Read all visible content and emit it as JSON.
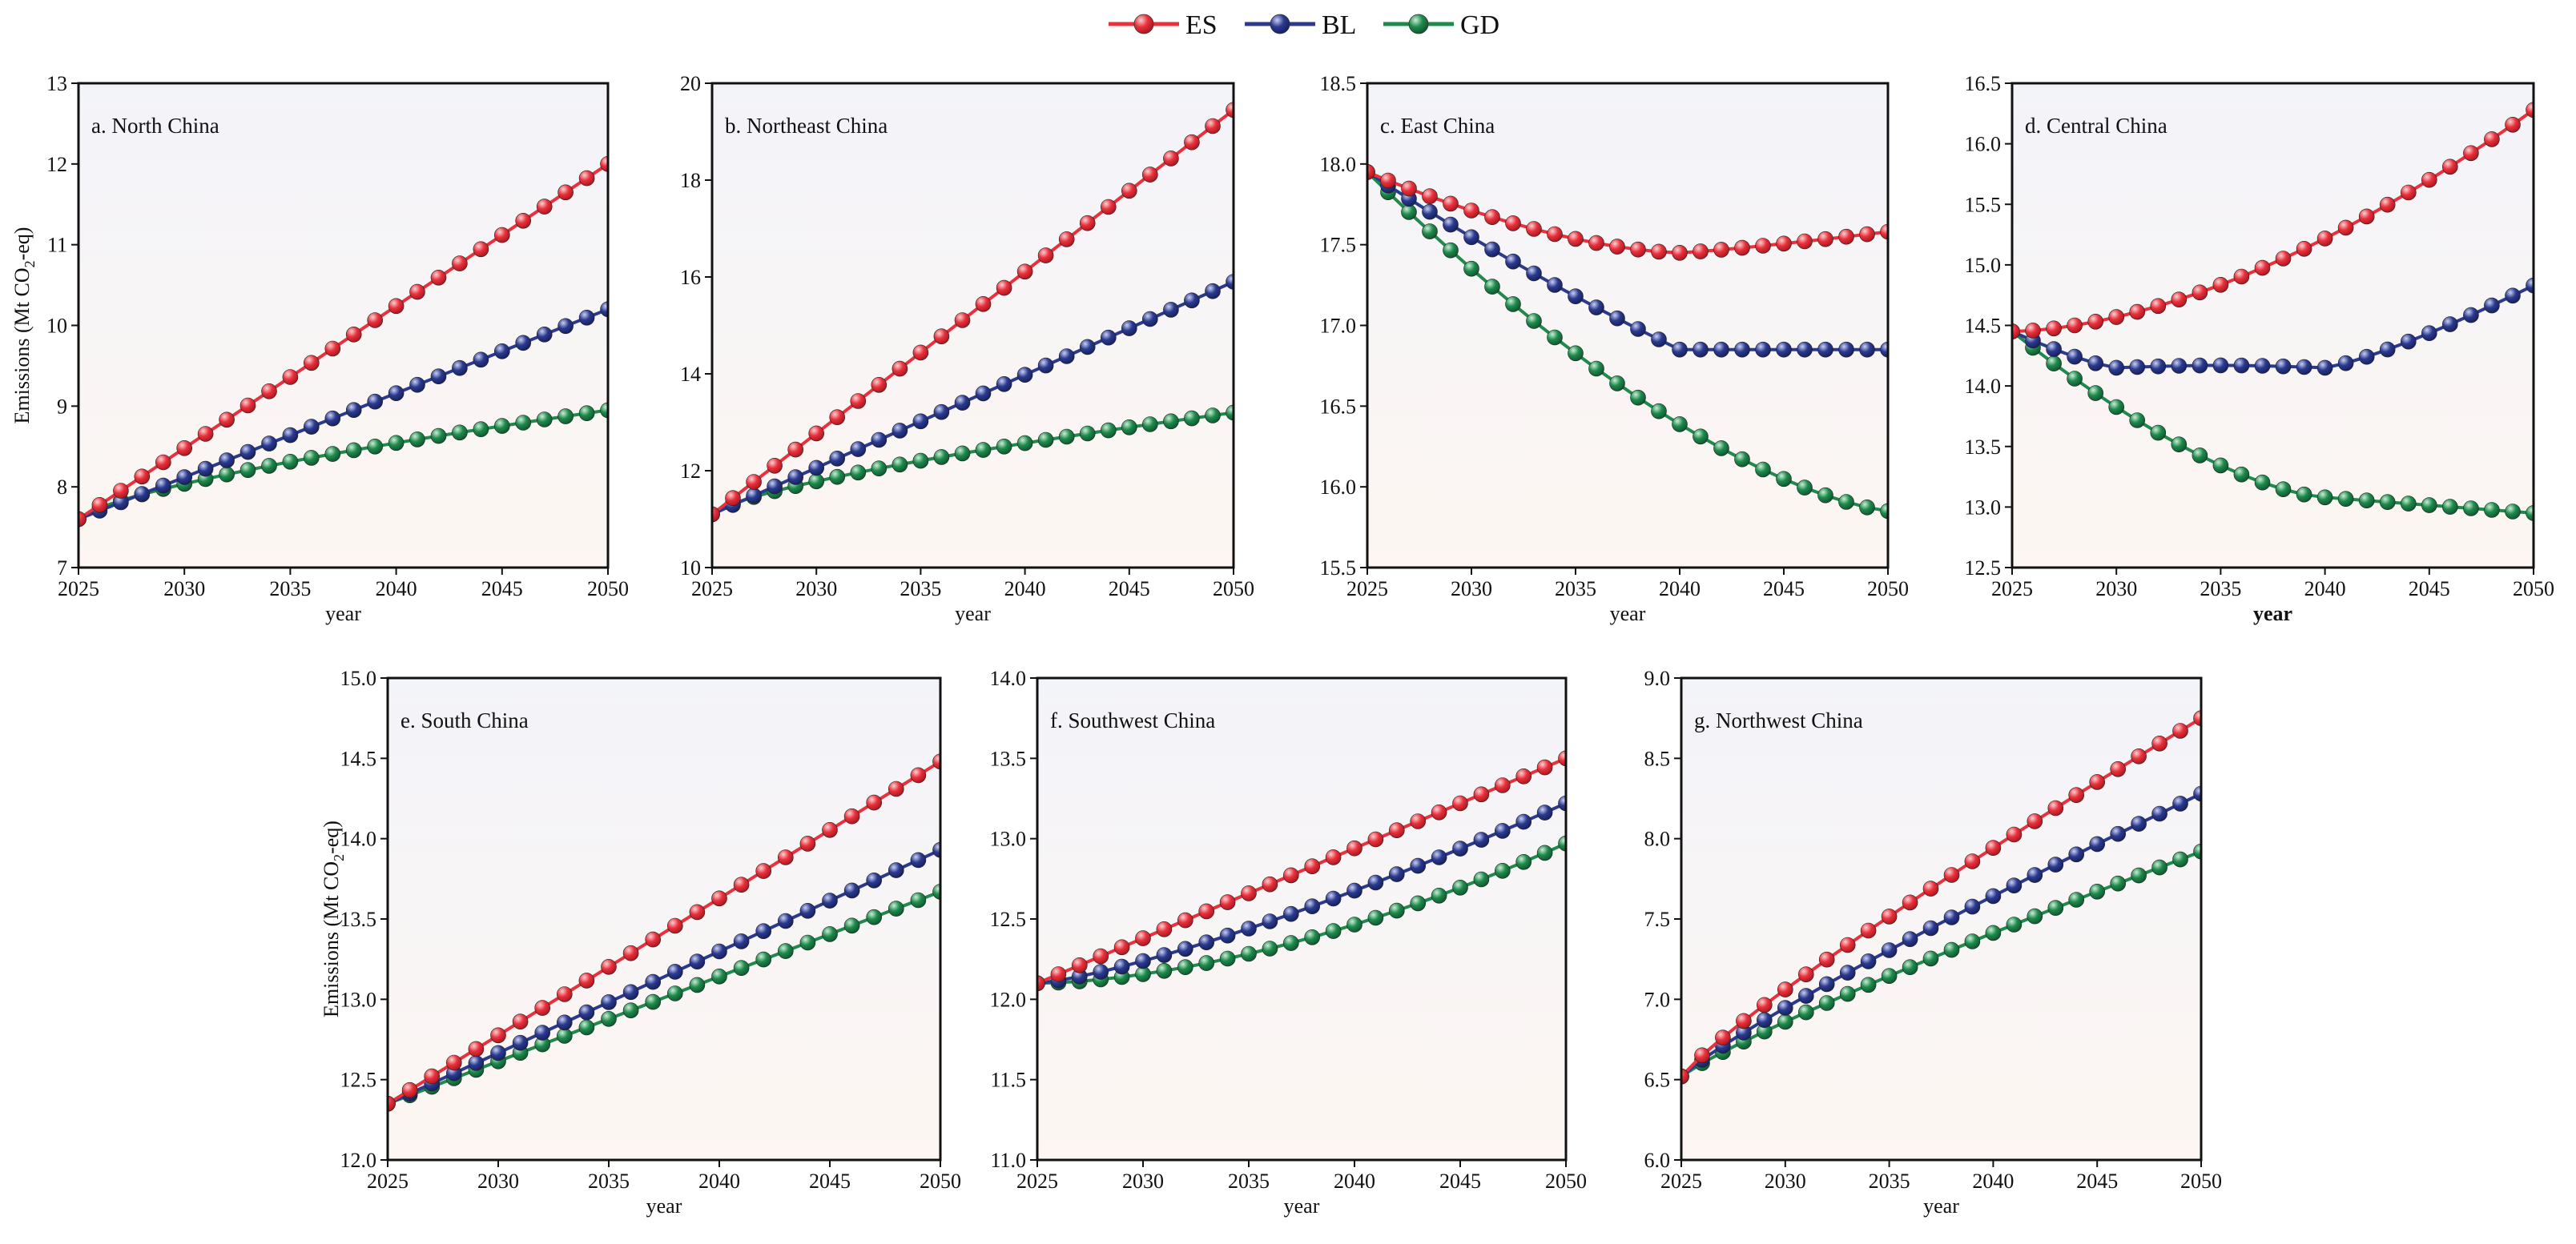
{
  "legend": [
    {
      "name": "ES",
      "color": "#e8313c"
    },
    {
      "name": "BL",
      "color": "#2b3a8f"
    },
    {
      "name": "GD",
      "color": "#1f8a4c"
    }
  ],
  "shared_xlabel": "year",
  "shared_ylabel": "Emissions (Mt CO",
  "shared_ylabel_sub": "2",
  "shared_ylabel_tail": "-eq)",
  "chart_data": [
    {
      "type": "line",
      "title": "a. North China",
      "xlabel": "year",
      "ylabel_shown": true,
      "xlim": [
        2025,
        2050
      ],
      "ylim": [
        7,
        13
      ],
      "xticks": [
        "2025",
        "2030",
        "2035",
        "2040",
        "2045",
        "2050"
      ],
      "yticks": [
        "7",
        "8",
        "9",
        "10",
        "11",
        "12",
        "13"
      ],
      "series": [
        {
          "name": "ES",
          "start": 7.6,
          "end": 12.0,
          "curve": "linear",
          "shape": 1.0
        },
        {
          "name": "BL",
          "start": 7.6,
          "end": 10.2,
          "curve": "linear",
          "shape": 1.0
        },
        {
          "name": "GD",
          "start": 7.6,
          "end": 8.95,
          "curve": "concave",
          "shape": 0.7
        }
      ]
    },
    {
      "type": "line",
      "title": "b. Northeast China",
      "xlabel": "year",
      "ylabel_shown": false,
      "xlim": [
        2025,
        2050
      ],
      "ylim": [
        10,
        20
      ],
      "xticks": [
        "2025",
        "2030",
        "2035",
        "2040",
        "2045",
        "2050"
      ],
      "yticks": [
        "10",
        "12",
        "14",
        "16",
        "18",
        "20"
      ],
      "series": [
        {
          "name": "ES",
          "start": 11.1,
          "end": 19.45,
          "curve": "linear",
          "shape": 1.0
        },
        {
          "name": "BL",
          "start": 11.1,
          "end": 15.9,
          "curve": "linear",
          "shape": 1.0
        },
        {
          "name": "GD",
          "start": 11.1,
          "end": 13.2,
          "curve": "concave",
          "shape": 0.7
        }
      ]
    },
    {
      "type": "line",
      "title": "c. East China",
      "xlabel": "year",
      "ylabel_shown": false,
      "xlim": [
        2025,
        2050
      ],
      "ylim": [
        15.5,
        18.5
      ],
      "xticks": [
        "2025",
        "2030",
        "2035",
        "2040",
        "2045",
        "2050"
      ],
      "yticks": [
        "15.5",
        "16.0",
        "16.5",
        "17.0",
        "17.5",
        "18.0",
        "18.5"
      ],
      "series": [
        {
          "name": "ES",
          "start": 17.95,
          "end": 17.58,
          "curve": "dip",
          "min": 17.45,
          "minAt": 2040
        },
        {
          "name": "BL",
          "start": 17.95,
          "end": 16.85,
          "curve": "flatafter",
          "flat": 16.85,
          "flatAt": 2040
        },
        {
          "name": "GD",
          "start": 17.95,
          "end": 15.85,
          "curve": "convexdown",
          "shape": 0.6
        }
      ]
    },
    {
      "type": "line",
      "title": "d. Central China",
      "xlabel": "year",
      "xlabel_bold": true,
      "ylabel_shown": false,
      "xlim": [
        2025,
        2050
      ],
      "ylim": [
        12.5,
        16.5
      ],
      "xticks": [
        "2025",
        "2030",
        "2035",
        "2040",
        "2045",
        "2050"
      ],
      "yticks": [
        "12.5",
        "13.0",
        "13.5",
        "14.0",
        "14.5",
        "15.0",
        "15.5",
        "16.0",
        "16.5"
      ],
      "series": [
        {
          "name": "ES",
          "start": 14.45,
          "end": 16.28,
          "curve": "convexup",
          "shape": 1.7
        },
        {
          "name": "BL",
          "start": 14.45,
          "end": 14.83,
          "curve": "dipflat",
          "min": 14.15,
          "minAt": 2030,
          "flatUntil": 2040
        },
        {
          "name": "GD",
          "start": 14.45,
          "end": 12.95,
          "curve": "decayflat",
          "knee": 13.08,
          "kneeAt": 2040
        }
      ]
    },
    {
      "type": "line",
      "title": "e. South China",
      "xlabel": "year",
      "ylabel_shown": true,
      "xlim": [
        2025,
        2050
      ],
      "ylim": [
        12.0,
        15.0
      ],
      "xticks": [
        "2025",
        "2030",
        "2035",
        "2040",
        "2045",
        "2050"
      ],
      "yticks": [
        "12.0",
        "12.5",
        "13.0",
        "13.5",
        "14.0",
        "14.5",
        "15.0"
      ],
      "series": [
        {
          "name": "ES",
          "start": 12.35,
          "end": 14.48,
          "curve": "linear",
          "shape": 1.0
        },
        {
          "name": "BL",
          "start": 12.35,
          "end": 13.93,
          "curve": "linear",
          "shape": 1.0
        },
        {
          "name": "GD",
          "start": 12.35,
          "end": 13.67,
          "curve": "linear",
          "shape": 1.0
        }
      ]
    },
    {
      "type": "line",
      "title": "f. Southwest China",
      "xlabel": "year",
      "ylabel_shown": false,
      "xlim": [
        2025,
        2050
      ],
      "ylim": [
        11.0,
        14.0
      ],
      "xticks": [
        "2025",
        "2030",
        "2035",
        "2040",
        "2045",
        "2050"
      ],
      "yticks": [
        "11.0",
        "11.5",
        "12.0",
        "12.5",
        "13.0",
        "13.5",
        "14.0"
      ],
      "series": [
        {
          "name": "ES",
          "start": 12.1,
          "end": 13.5,
          "curve": "linear",
          "shape": 1.0
        },
        {
          "name": "BL",
          "start": 12.1,
          "end": 13.22,
          "curve": "convexup",
          "shape": 1.3
        },
        {
          "name": "GD",
          "start": 12.1,
          "end": 12.97,
          "curve": "convexup",
          "shape": 1.7
        }
      ]
    },
    {
      "type": "line",
      "title": "g. Northwest China",
      "xlabel": "year",
      "ylabel_shown": false,
      "xlim": [
        2025,
        2050
      ],
      "ylim": [
        6.0,
        9.0
      ],
      "xticks": [
        "2025",
        "2030",
        "2035",
        "2040",
        "2045",
        "2050"
      ],
      "yticks": [
        "6.0",
        "6.5",
        "7.0",
        "7.5",
        "8.0",
        "8.5",
        "9.0"
      ],
      "series": [
        {
          "name": "ES",
          "start": 6.52,
          "end": 8.75,
          "curve": "concave",
          "shape": 0.88
        },
        {
          "name": "BL",
          "start": 6.52,
          "end": 8.28,
          "curve": "concave",
          "shape": 0.88
        },
        {
          "name": "GD",
          "start": 6.52,
          "end": 7.92,
          "curve": "concave",
          "shape": 0.88
        }
      ]
    }
  ]
}
